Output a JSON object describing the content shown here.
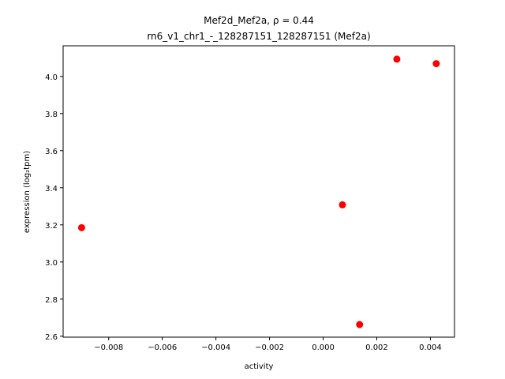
{
  "chart_data": {
    "type": "scatter",
    "title_line1": "Mef2d_Mef2a, ρ = 0.44",
    "title_line2": "rn6_v1_chr1_-_128287151_128287151 (Mef2a)",
    "xlabel": "activity",
    "ylabel": "expression (log₂tpm)",
    "xlim": [
      -0.0097,
      0.0049
    ],
    "ylim": [
      2.595,
      4.165
    ],
    "xticks": [
      -0.008,
      -0.006,
      -0.004,
      -0.002,
      0.0,
      0.002,
      0.004
    ],
    "xtick_labels": [
      "−0.008",
      "−0.006",
      "−0.004",
      "−0.002",
      "0.000",
      "0.002",
      "0.004"
    ],
    "yticks": [
      2.6,
      2.8,
      3.0,
      3.2,
      3.4,
      3.6,
      3.8,
      4.0
    ],
    "ytick_labels": [
      "2.6",
      "2.8",
      "3.0",
      "3.2",
      "3.4",
      "3.6",
      "3.8",
      "4.0"
    ],
    "points": [
      {
        "x": -0.00901,
        "y": 3.185
      },
      {
        "x": 0.00072,
        "y": 3.308
      },
      {
        "x": 0.00136,
        "y": 2.663
      },
      {
        "x": 0.00275,
        "y": 4.093
      },
      {
        "x": 0.00422,
        "y": 4.069
      }
    ],
    "marker_color": "#ff0000",
    "grid": false
  }
}
